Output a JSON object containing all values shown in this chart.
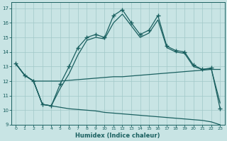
{
  "xlabel": "Humidex (Indice chaleur)",
  "bg_color": "#c8e4e4",
  "grid_color": "#a0c8c8",
  "line_color": "#1a6060",
  "xlim": [
    -0.5,
    23.5
  ],
  "ylim": [
    9,
    17.4
  ],
  "xticks": [
    0,
    1,
    2,
    3,
    4,
    5,
    6,
    7,
    8,
    9,
    10,
    11,
    12,
    13,
    14,
    15,
    16,
    17,
    18,
    19,
    20,
    21,
    22,
    23
  ],
  "yticks": [
    9,
    10,
    11,
    12,
    13,
    14,
    15,
    16,
    17
  ],
  "series": [
    {
      "x": [
        0,
        1,
        2,
        3,
        4,
        5,
        6,
        7,
        8,
        9,
        10,
        11,
        12,
        13,
        14,
        15,
        16,
        17,
        18,
        19,
        20,
        21,
        22,
        23
      ],
      "y": [
        13.2,
        12.4,
        12.0,
        10.4,
        10.3,
        11.8,
        13.0,
        14.3,
        15.0,
        15.2,
        15.0,
        16.5,
        16.9,
        16.0,
        15.2,
        15.5,
        16.5,
        14.4,
        14.1,
        14.0,
        13.1,
        12.8,
        12.9,
        10.1
      ],
      "marker": "+",
      "markersize": 4,
      "markeredgewidth": 1.0,
      "linestyle": "-",
      "linewidth": 0.9
    },
    {
      "x": [
        0,
        1,
        2,
        3,
        4,
        5,
        6,
        7,
        8,
        9,
        10,
        11,
        12,
        13,
        14,
        15,
        16,
        17,
        18,
        19,
        20,
        21,
        22,
        23
      ],
      "y": [
        13.2,
        12.4,
        12.0,
        10.4,
        10.3,
        11.5,
        12.5,
        13.8,
        14.8,
        15.0,
        14.9,
        16.0,
        16.6,
        15.8,
        15.0,
        15.3,
        16.2,
        14.3,
        14.0,
        13.9,
        13.0,
        12.8,
        12.85,
        10.5
      ],
      "marker": null,
      "linestyle": "-",
      "linewidth": 0.9
    },
    {
      "x": [
        0,
        1,
        2,
        3,
        4,
        5,
        6,
        7,
        8,
        9,
        10,
        11,
        12,
        13,
        14,
        15,
        16,
        17,
        18,
        19,
        20,
        21,
        22,
        23
      ],
      "y": [
        13.2,
        12.4,
        12.0,
        12.0,
        12.0,
        12.0,
        12.05,
        12.1,
        12.15,
        12.2,
        12.25,
        12.3,
        12.3,
        12.35,
        12.4,
        12.45,
        12.5,
        12.55,
        12.6,
        12.65,
        12.7,
        12.75,
        12.8,
        12.8
      ],
      "marker": null,
      "linestyle": "-",
      "linewidth": 0.9
    },
    {
      "x": [
        0,
        1,
        2,
        3,
        4,
        5,
        6,
        7,
        8,
        9,
        10,
        11,
        12,
        13,
        14,
        15,
        16,
        17,
        18,
        19,
        20,
        21,
        22,
        23
      ],
      "y": [
        13.2,
        12.4,
        12.0,
        10.4,
        10.3,
        10.2,
        10.1,
        10.05,
        10.0,
        9.95,
        9.85,
        9.8,
        9.75,
        9.7,
        9.65,
        9.6,
        9.55,
        9.5,
        9.45,
        9.4,
        9.35,
        9.3,
        9.2,
        9.0
      ],
      "marker": null,
      "linestyle": "-",
      "linewidth": 0.9
    }
  ]
}
